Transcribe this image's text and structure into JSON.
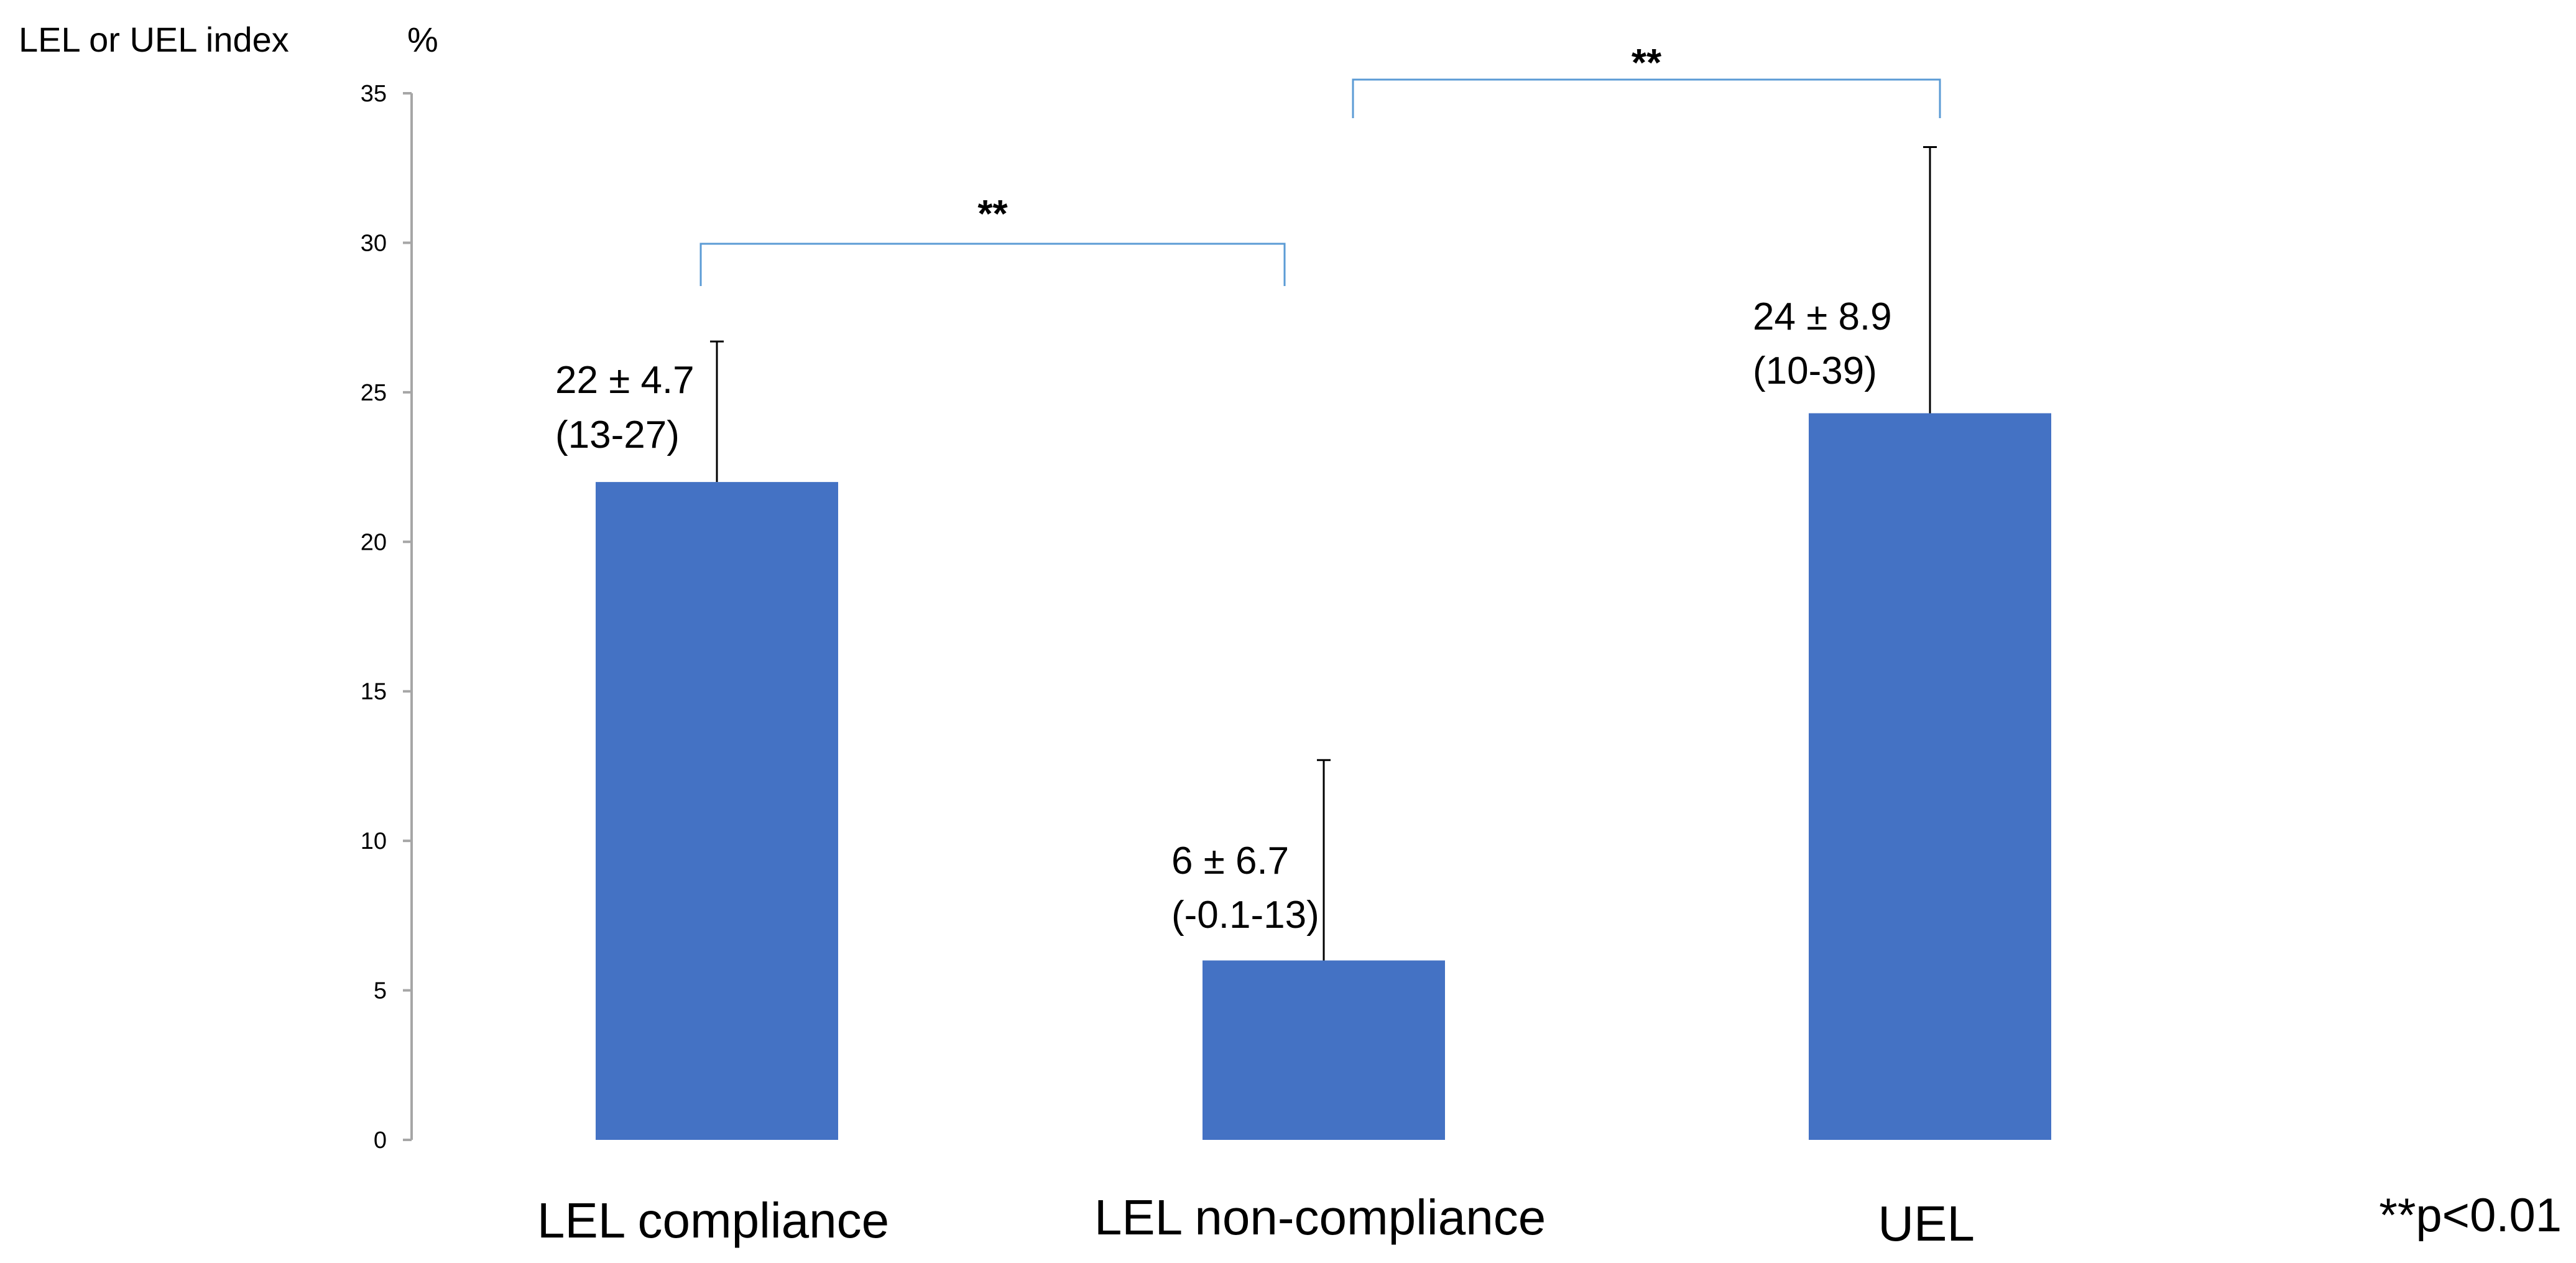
{
  "chart_data": {
    "type": "bar",
    "ylabel": "LEL or UEL index",
    "yunit": "%",
    "ylim": [
      0,
      35
    ],
    "yticks": [
      0,
      5,
      10,
      15,
      20,
      25,
      30,
      35
    ],
    "grid": false,
    "categories": [
      "LEL compliance",
      "LEL non-compliance",
      "UEL"
    ],
    "values": [
      22,
      6,
      24.3
    ],
    "error_plus": [
      4.7,
      6.7,
      8.9
    ],
    "data_labels": [
      {
        "mean_sd": "22 ± 4.7",
        "range": "(13-27)"
      },
      {
        "mean_sd": "6 ± 6.7",
        "range": "(-0.1-13)"
      },
      {
        "mean_sd": "24 ± 8.9",
        "range": "(10-39)"
      }
    ],
    "significance": [
      {
        "from": 0,
        "to": 1,
        "label": "**"
      },
      {
        "from": 1,
        "to": 2,
        "label": "**"
      }
    ],
    "footnote": "**p<0.01",
    "colors": {
      "bar": "#4472C4",
      "bracket": "#5B9BD5",
      "axis": "#A6A6A6",
      "error": "#000000"
    }
  }
}
